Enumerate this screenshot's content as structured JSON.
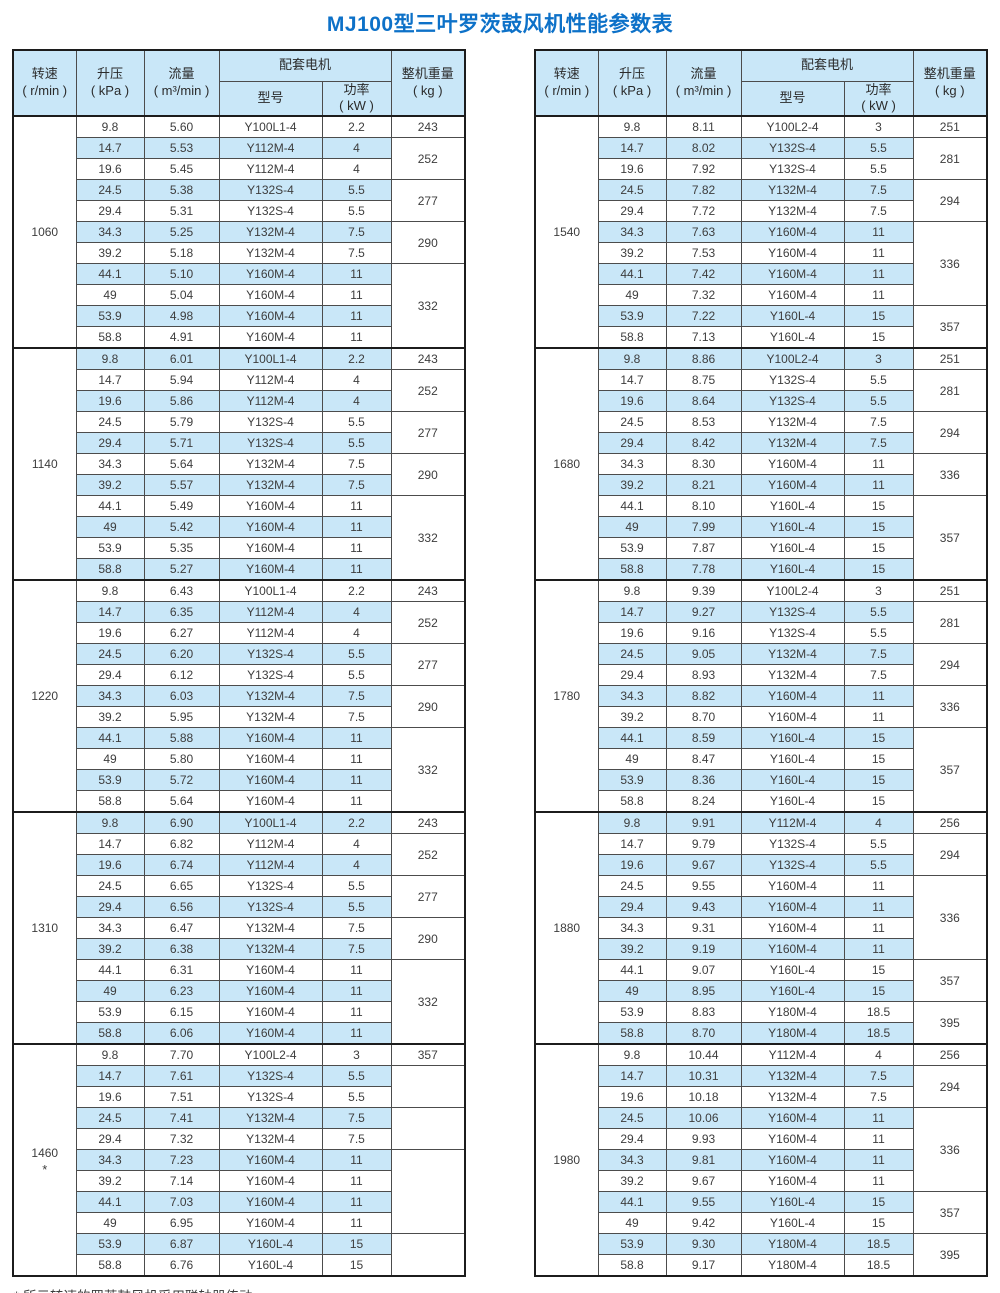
{
  "title": "MJ100型三叶罗茨鼓风机性能参数表",
  "footnote": "* 所示转速的罗茨鼓风机采用联轴器传动",
  "colors": {
    "title_blue": "#0d71c8",
    "row_blue": "#c9e7f8",
    "header_blue": "#c9e7f8",
    "border_dark": "#1c1c1c",
    "border_light": "#4c4c4c"
  },
  "header": {
    "speed": "转速",
    "speed_unit": "( r/min )",
    "pressure": "升压",
    "pressure_unit": "( kPa )",
    "flow": "流量",
    "flow_unit": "( m³/min )",
    "motor": "配套电机",
    "model": "型号",
    "power": "功率",
    "power_unit": "( kW )",
    "weight": "整机重量",
    "weight_unit": "( kg )"
  },
  "tables": [
    {
      "groups": [
        {
          "speed": "1060",
          "note": "",
          "rows": [
            [
              "9.8",
              "5.60",
              "Y100L1-4",
              "2.2"
            ],
            [
              "14.7",
              "5.53",
              "Y112M-4",
              "4"
            ],
            [
              "19.6",
              "5.45",
              "Y112M-4",
              "4"
            ],
            [
              "24.5",
              "5.38",
              "Y132S-4",
              "5.5"
            ],
            [
              "29.4",
              "5.31",
              "Y132S-4",
              "5.5"
            ],
            [
              "34.3",
              "5.25",
              "Y132M-4",
              "7.5"
            ],
            [
              "39.2",
              "5.18",
              "Y132M-4",
              "7.5"
            ],
            [
              "44.1",
              "5.10",
              "Y160M-4",
              "11"
            ],
            [
              "49",
              "5.04",
              "Y160M-4",
              "11"
            ],
            [
              "53.9",
              "4.98",
              "Y160M-4",
              "11"
            ],
            [
              "58.8",
              "4.91",
              "Y160M-4",
              "11"
            ]
          ],
          "weights": [
            {
              "span": 1,
              "value": "243"
            },
            {
              "span": 2,
              "value": "252"
            },
            {
              "span": 2,
              "value": "277"
            },
            {
              "span": 2,
              "value": "290"
            },
            {
              "span": 4,
              "value": "332"
            }
          ]
        },
        {
          "speed": "1140",
          "note": "",
          "rows": [
            [
              "9.8",
              "6.01",
              "Y100L1-4",
              "2.2"
            ],
            [
              "14.7",
              "5.94",
              "Y112M-4",
              "4"
            ],
            [
              "19.6",
              "5.86",
              "Y112M-4",
              "4"
            ],
            [
              "24.5",
              "5.79",
              "Y132S-4",
              "5.5"
            ],
            [
              "29.4",
              "5.71",
              "Y132S-4",
              "5.5"
            ],
            [
              "34.3",
              "5.64",
              "Y132M-4",
              "7.5"
            ],
            [
              "39.2",
              "5.57",
              "Y132M-4",
              "7.5"
            ],
            [
              "44.1",
              "5.49",
              "Y160M-4",
              "11"
            ],
            [
              "49",
              "5.42",
              "Y160M-4",
              "11"
            ],
            [
              "53.9",
              "5.35",
              "Y160M-4",
              "11"
            ],
            [
              "58.8",
              "5.27",
              "Y160M-4",
              "11"
            ]
          ],
          "weights": [
            {
              "span": 1,
              "value": "243"
            },
            {
              "span": 2,
              "value": "252"
            },
            {
              "span": 2,
              "value": "277"
            },
            {
              "span": 2,
              "value": "290"
            },
            {
              "span": 4,
              "value": "332"
            }
          ]
        },
        {
          "speed": "1220",
          "note": "",
          "rows": [
            [
              "9.8",
              "6.43",
              "Y100L1-4",
              "2.2"
            ],
            [
              "14.7",
              "6.35",
              "Y112M-4",
              "4"
            ],
            [
              "19.6",
              "6.27",
              "Y112M-4",
              "4"
            ],
            [
              "24.5",
              "6.20",
              "Y132S-4",
              "5.5"
            ],
            [
              "29.4",
              "6.12",
              "Y132S-4",
              "5.5"
            ],
            [
              "34.3",
              "6.03",
              "Y132M-4",
              "7.5"
            ],
            [
              "39.2",
              "5.95",
              "Y132M-4",
              "7.5"
            ],
            [
              "44.1",
              "5.88",
              "Y160M-4",
              "11"
            ],
            [
              "49",
              "5.80",
              "Y160M-4",
              "11"
            ],
            [
              "53.9",
              "5.72",
              "Y160M-4",
              "11"
            ],
            [
              "58.8",
              "5.64",
              "Y160M-4",
              "11"
            ]
          ],
          "weights": [
            {
              "span": 1,
              "value": "243"
            },
            {
              "span": 2,
              "value": "252"
            },
            {
              "span": 2,
              "value": "277"
            },
            {
              "span": 2,
              "value": "290"
            },
            {
              "span": 4,
              "value": "332"
            }
          ]
        },
        {
          "speed": "1310",
          "note": "",
          "rows": [
            [
              "9.8",
              "6.90",
              "Y100L1-4",
              "2.2"
            ],
            [
              "14.7",
              "6.82",
              "Y112M-4",
              "4"
            ],
            [
              "19.6",
              "6.74",
              "Y112M-4",
              "4"
            ],
            [
              "24.5",
              "6.65",
              "Y132S-4",
              "5.5"
            ],
            [
              "29.4",
              "6.56",
              "Y132S-4",
              "5.5"
            ],
            [
              "34.3",
              "6.47",
              "Y132M-4",
              "7.5"
            ],
            [
              "39.2",
              "6.38",
              "Y132M-4",
              "7.5"
            ],
            [
              "44.1",
              "6.31",
              "Y160M-4",
              "11"
            ],
            [
              "49",
              "6.23",
              "Y160M-4",
              "11"
            ],
            [
              "53.9",
              "6.15",
              "Y160M-4",
              "11"
            ],
            [
              "58.8",
              "6.06",
              "Y160M-4",
              "11"
            ]
          ],
          "weights": [
            {
              "span": 1,
              "value": "243"
            },
            {
              "span": 2,
              "value": "252"
            },
            {
              "span": 2,
              "value": "277"
            },
            {
              "span": 2,
              "value": "290"
            },
            {
              "span": 4,
              "value": "332"
            }
          ]
        },
        {
          "speed": "1460",
          "note": "*",
          "rows": [
            [
              "9.8",
              "7.70",
              "Y100L2-4",
              "3"
            ],
            [
              "14.7",
              "7.61",
              "Y132S-4",
              "5.5"
            ],
            [
              "19.6",
              "7.51",
              "Y132S-4",
              "5.5"
            ],
            [
              "24.5",
              "7.41",
              "Y132M-4",
              "7.5"
            ],
            [
              "29.4",
              "7.32",
              "Y132M-4",
              "7.5"
            ],
            [
              "34.3",
              "7.23",
              "Y160M-4",
              "11"
            ],
            [
              "39.2",
              "7.14",
              "Y160M-4",
              "11"
            ],
            [
              "44.1",
              "7.03",
              "Y160M-4",
              "11"
            ],
            [
              "49",
              "6.95",
              "Y160M-4",
              "11"
            ],
            [
              "53.9",
              "6.87",
              "Y160L-4",
              "15"
            ],
            [
              "58.8",
              "6.76",
              "Y160L-4",
              "15"
            ]
          ],
          "weights": [
            {
              "span": 1,
              "value": "357"
            },
            {
              "span": 2,
              "value": ""
            },
            {
              "span": 2,
              "value": ""
            },
            {
              "span": 4,
              "value": ""
            },
            {
              "span": 2,
              "value": ""
            }
          ]
        }
      ]
    },
    {
      "groups": [
        {
          "speed": "1540",
          "note": "",
          "rows": [
            [
              "9.8",
              "8.11",
              "Y100L2-4",
              "3"
            ],
            [
              "14.7",
              "8.02",
              "Y132S-4",
              "5.5"
            ],
            [
              "19.6",
              "7.92",
              "Y132S-4",
              "5.5"
            ],
            [
              "24.5",
              "7.82",
              "Y132M-4",
              "7.5"
            ],
            [
              "29.4",
              "7.72",
              "Y132M-4",
              "7.5"
            ],
            [
              "34.3",
              "7.63",
              "Y160M-4",
              "11"
            ],
            [
              "39.2",
              "7.53",
              "Y160M-4",
              "11"
            ],
            [
              "44.1",
              "7.42",
              "Y160M-4",
              "11"
            ],
            [
              "49",
              "7.32",
              "Y160M-4",
              "11"
            ],
            [
              "53.9",
              "7.22",
              "Y160L-4",
              "15"
            ],
            [
              "58.8",
              "7.13",
              "Y160L-4",
              "15"
            ]
          ],
          "weights": [
            {
              "span": 1,
              "value": "251"
            },
            {
              "span": 2,
              "value": "281"
            },
            {
              "span": 2,
              "value": "294"
            },
            {
              "span": 4,
              "value": "336"
            },
            {
              "span": 2,
              "value": "357"
            }
          ]
        },
        {
          "speed": "1680",
          "note": "",
          "rows": [
            [
              "9.8",
              "8.86",
              "Y100L2-4",
              "3"
            ],
            [
              "14.7",
              "8.75",
              "Y132S-4",
              "5.5"
            ],
            [
              "19.6",
              "8.64",
              "Y132S-4",
              "5.5"
            ],
            [
              "24.5",
              "8.53",
              "Y132M-4",
              "7.5"
            ],
            [
              "29.4",
              "8.42",
              "Y132M-4",
              "7.5"
            ],
            [
              "34.3",
              "8.30",
              "Y160M-4",
              "11"
            ],
            [
              "39.2",
              "8.21",
              "Y160M-4",
              "11"
            ],
            [
              "44.1",
              "8.10",
              "Y160L-4",
              "15"
            ],
            [
              "49",
              "7.99",
              "Y160L-4",
              "15"
            ],
            [
              "53.9",
              "7.87",
              "Y160L-4",
              "15"
            ],
            [
              "58.8",
              "7.78",
              "Y160L-4",
              "15"
            ]
          ],
          "weights": [
            {
              "span": 1,
              "value": "251"
            },
            {
              "span": 2,
              "value": "281"
            },
            {
              "span": 2,
              "value": "294"
            },
            {
              "span": 2,
              "value": "336"
            },
            {
              "span": 4,
              "value": "357"
            }
          ]
        },
        {
          "speed": "1780",
          "note": "",
          "rows": [
            [
              "9.8",
              "9.39",
              "Y100L2-4",
              "3"
            ],
            [
              "14.7",
              "9.27",
              "Y132S-4",
              "5.5"
            ],
            [
              "19.6",
              "9.16",
              "Y132S-4",
              "5.5"
            ],
            [
              "24.5",
              "9.05",
              "Y132M-4",
              "7.5"
            ],
            [
              "29.4",
              "8.93",
              "Y132M-4",
              "7.5"
            ],
            [
              "34.3",
              "8.82",
              "Y160M-4",
              "11"
            ],
            [
              "39.2",
              "8.70",
              "Y160M-4",
              "11"
            ],
            [
              "44.1",
              "8.59",
              "Y160L-4",
              "15"
            ],
            [
              "49",
              "8.47",
              "Y160L-4",
              "15"
            ],
            [
              "53.9",
              "8.36",
              "Y160L-4",
              "15"
            ],
            [
              "58.8",
              "8.24",
              "Y160L-4",
              "15"
            ]
          ],
          "weights": [
            {
              "span": 1,
              "value": "251"
            },
            {
              "span": 2,
              "value": "281"
            },
            {
              "span": 2,
              "value": "294"
            },
            {
              "span": 2,
              "value": "336"
            },
            {
              "span": 4,
              "value": "357"
            }
          ]
        },
        {
          "speed": "1880",
          "note": "",
          "rows": [
            [
              "9.8",
              "9.91",
              "Y112M-4",
              "4"
            ],
            [
              "14.7",
              "9.79",
              "Y132S-4",
              "5.5"
            ],
            [
              "19.6",
              "9.67",
              "Y132S-4",
              "5.5"
            ],
            [
              "24.5",
              "9.55",
              "Y160M-4",
              "11"
            ],
            [
              "29.4",
              "9.43",
              "Y160M-4",
              "11"
            ],
            [
              "34.3",
              "9.31",
              "Y160M-4",
              "11"
            ],
            [
              "39.2",
              "9.19",
              "Y160M-4",
              "11"
            ],
            [
              "44.1",
              "9.07",
              "Y160L-4",
              "15"
            ],
            [
              "49",
              "8.95",
              "Y160L-4",
              "15"
            ],
            [
              "53.9",
              "8.83",
              "Y180M-4",
              "18.5"
            ],
            [
              "58.8",
              "8.70",
              "Y180M-4",
              "18.5"
            ]
          ],
          "weights": [
            {
              "span": 1,
              "value": "256"
            },
            {
              "span": 2,
              "value": "294"
            },
            {
              "span": 4,
              "value": "336"
            },
            {
              "span": 2,
              "value": "357"
            },
            {
              "span": 2,
              "value": "395"
            }
          ]
        },
        {
          "speed": "1980",
          "note": "",
          "rows": [
            [
              "9.8",
              "10.44",
              "Y112M-4",
              "4"
            ],
            [
              "14.7",
              "10.31",
              "Y132M-4",
              "7.5"
            ],
            [
              "19.6",
              "10.18",
              "Y132M-4",
              "7.5"
            ],
            [
              "24.5",
              "10.06",
              "Y160M-4",
              "11"
            ],
            [
              "29.4",
              "9.93",
              "Y160M-4",
              "11"
            ],
            [
              "34.3",
              "9.81",
              "Y160M-4",
              "11"
            ],
            [
              "39.2",
              "9.67",
              "Y160M-4",
              "11"
            ],
            [
              "44.1",
              "9.55",
              "Y160L-4",
              "15"
            ],
            [
              "49",
              "9.42",
              "Y160L-4",
              "15"
            ],
            [
              "53.9",
              "9.30",
              "Y180M-4",
              "18.5"
            ],
            [
              "58.8",
              "9.17",
              "Y180M-4",
              "18.5"
            ]
          ],
          "weights": [
            {
              "span": 1,
              "value": "256"
            },
            {
              "span": 2,
              "value": "294"
            },
            {
              "span": 4,
              "value": "336"
            },
            {
              "span": 2,
              "value": "357"
            },
            {
              "span": 2,
              "value": "395"
            }
          ]
        }
      ]
    }
  ]
}
